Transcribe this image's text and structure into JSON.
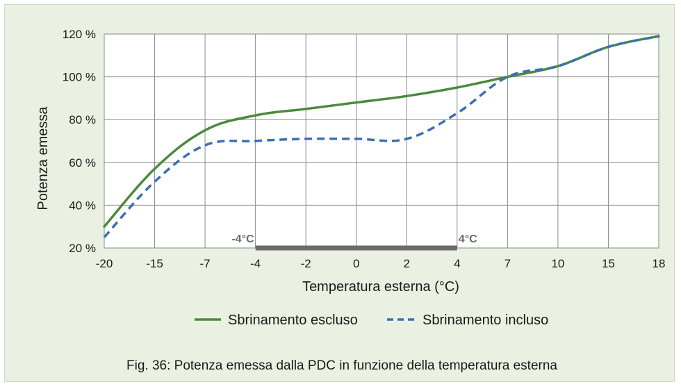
{
  "chart_data": {
    "type": "line",
    "xlabel": "Temperatura esterna (°C)",
    "ylabel": "Potenza emessa",
    "x_ticks": [
      "-20",
      "-15",
      "-7",
      "-4",
      "-2",
      "0",
      "2",
      "4",
      "7",
      "10",
      "15",
      "18"
    ],
    "y_ticks": [
      "20 %",
      "40 %",
      "60 %",
      "80 %",
      "100 %",
      "120 %"
    ],
    "y_tick_values": [
      20,
      40,
      60,
      80,
      100,
      120
    ],
    "ylim": [
      20,
      120
    ],
    "grid": true,
    "legend_position": "bottom",
    "series": [
      {
        "name": "Sbrinamento escluso",
        "color": "#4a8a3c",
        "style": "solid",
        "points": [
          [
            "-20",
            30
          ],
          [
            "-15",
            57
          ],
          [
            "-7",
            75
          ],
          [
            "-4",
            82
          ],
          [
            "-2",
            85
          ],
          [
            "0",
            88
          ],
          [
            "2",
            91
          ],
          [
            "4",
            95
          ],
          [
            "7",
            100
          ],
          [
            "10",
            105
          ],
          [
            "15",
            114
          ],
          [
            "18",
            119
          ]
        ]
      },
      {
        "name": "Sbrinamento incluso",
        "color": "#3a6fb5",
        "style": "dashed",
        "points": [
          [
            "-20",
            25
          ],
          [
            "-15",
            51
          ],
          [
            "-7",
            68
          ],
          [
            "-4",
            70
          ],
          [
            "-2",
            71
          ],
          [
            "0",
            71
          ],
          [
            "2",
            71
          ],
          [
            "4",
            83
          ],
          [
            "7",
            100
          ],
          [
            "10",
            105
          ],
          [
            "15",
            114
          ],
          [
            "18",
            119
          ]
        ]
      }
    ],
    "annotations": [
      {
        "type": "range-bar",
        "from": "-4",
        "to": "4",
        "color": "#6b6b6b",
        "labels": [
          "-4°C",
          "4°C"
        ]
      }
    ]
  },
  "caption": "Fig. 36: Potenza emessa dalla PDC in funzione della temperatura esterna"
}
